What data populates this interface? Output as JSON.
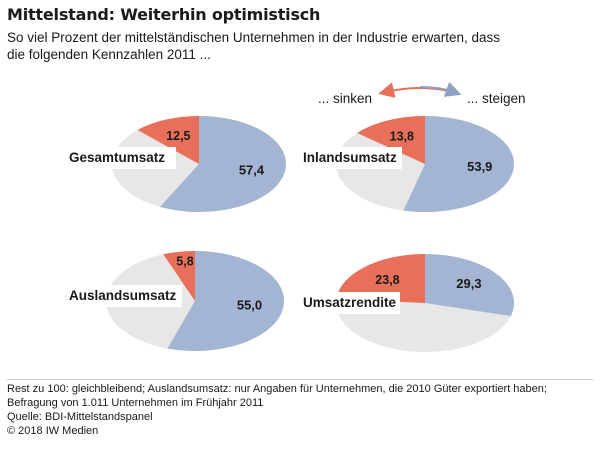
{
  "title": "Mittelstand: Weiterhin optimistisch",
  "subtitle": "So viel Prozent der mittelständischen Unternehmen in der Industrie erwarten, dass die folgenden Kennzahlen 2011 ...",
  "legend": {
    "decrease": "... sinken",
    "increase": "... steigen"
  },
  "colors": {
    "decrease": "#e8705a",
    "increase": "#a3b5d3",
    "rest": "#e7e7e7",
    "arrow_left": "#e8705a",
    "arrow_right": "#8ea2c4"
  },
  "chart_data": [
    {
      "type": "pie",
      "title": "Gesamtumsatz",
      "series": [
        {
          "name": "... sinken",
          "value": 12.5
        },
        {
          "name": "... steigen",
          "value": 57.4
        }
      ],
      "labels": [
        "12,5",
        "57,4"
      ]
    },
    {
      "type": "pie",
      "title": "Inlandsumsatz",
      "series": [
        {
          "name": "... sinken",
          "value": 13.8
        },
        {
          "name": "... steigen",
          "value": 53.9
        }
      ],
      "labels": [
        "13,8",
        "53,9"
      ]
    },
    {
      "type": "pie",
      "title": "Auslandsumsatz",
      "series": [
        {
          "name": "... sinken",
          "value": 5.8
        },
        {
          "name": "... steigen",
          "value": 55.0
        }
      ],
      "labels": [
        "5,8",
        "55,0"
      ]
    },
    {
      "type": "pie",
      "title": "Umsatzrendite",
      "series": [
        {
          "name": "... sinken",
          "value": 23.8
        },
        {
          "name": "... steigen",
          "value": 29.3
        }
      ],
      "labels": [
        "23,8",
        "29,3"
      ]
    }
  ],
  "footnote": {
    "line1": "Rest zu 100: gleichbleibend; Auslandsumsatz: nur Angaben für Unternehmen, die 2010 Güter exportiert haben;",
    "line2": "Befragung von 1.011 Unternehmen im Frühjahr 2011",
    "line3": "Quelle: BDI-Mittelstandspanel",
    "line4": "© 2018 IW Medien"
  }
}
